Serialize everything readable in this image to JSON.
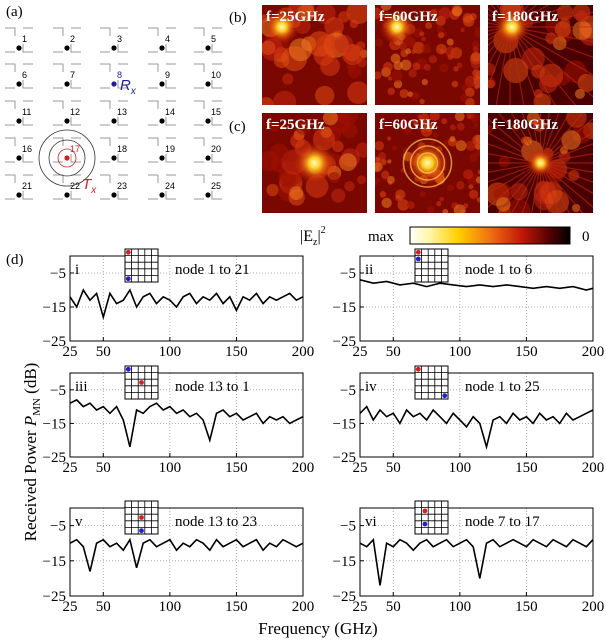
{
  "labels": {
    "a": "(a)",
    "b": "(b)",
    "c": "(c)",
    "d": "(d)"
  },
  "grid": {
    "nodes": [
      "1",
      "2",
      "3",
      "4",
      "5",
      "6",
      "7",
      "8",
      "9",
      "10",
      "11",
      "12",
      "13",
      "14",
      "15",
      "16",
      "17",
      "18",
      "19",
      "20",
      "21",
      "22",
      "23",
      "24",
      "25"
    ],
    "rx_label": "R",
    "rx_sub": "x",
    "tx_label": "T",
    "tx_sub": "x",
    "rx_color": "#1f1f9a",
    "tx_color": "#d42020"
  },
  "heatmap_titles": {
    "b": [
      "f=25GHz",
      "f=60GHz",
      "f=180GHz"
    ],
    "c": [
      "f=25GHz",
      "f=60GHz",
      "f=180GHz"
    ]
  },
  "colorbar": {
    "quantity": "|E",
    "sub": "z",
    "sup": "2",
    "max_label": "max",
    "min_label": "0"
  },
  "axes": {
    "ylabel": "Received Power",
    "ylabel_sym": "P",
    "ylabel_sub": "MN",
    "ylabel_unit": "(dB)",
    "xlabel": "Frequency (GHz)"
  },
  "chart_data": [
    {
      "type": "line",
      "panel": "i",
      "title": "node 1 to 21",
      "xlim": [
        25,
        200
      ],
      "ylim": [
        -25,
        0
      ],
      "xticks": [
        "25",
        "50",
        "100",
        "150",
        "200"
      ],
      "yticks": [
        "-5",
        "-15",
        "-25"
      ],
      "x": [
        25,
        30,
        35,
        40,
        45,
        50,
        55,
        60,
        65,
        70,
        75,
        80,
        85,
        90,
        95,
        100,
        105,
        110,
        115,
        120,
        125,
        130,
        135,
        140,
        145,
        150,
        155,
        160,
        165,
        170,
        175,
        180,
        185,
        190,
        195,
        200
      ],
      "y": [
        -12,
        -15,
        -10,
        -13,
        -11,
        -18,
        -11,
        -14,
        -13,
        -10,
        -15,
        -12,
        -11,
        -14,
        -12,
        -13,
        -15,
        -12,
        -11,
        -14,
        -12,
        -13,
        -11,
        -14,
        -12,
        -16,
        -12,
        -13,
        -11,
        -14,
        -12,
        -13,
        -12,
        -11,
        -13,
        -12
      ]
    },
    {
      "type": "line",
      "panel": "ii",
      "title": "node 1 to 6",
      "xlim": [
        25,
        200
      ],
      "ylim": [
        -25,
        0
      ],
      "xticks": [
        "25",
        "50",
        "100",
        "150",
        "200"
      ],
      "yticks": [
        "-5",
        "-15",
        "-25"
      ],
      "x": [
        25,
        35,
        45,
        55,
        65,
        75,
        85,
        95,
        105,
        115,
        125,
        135,
        145,
        155,
        165,
        175,
        185,
        195,
        200
      ],
      "y": [
        -7,
        -8,
        -7.5,
        -8.5,
        -8,
        -9,
        -8,
        -8.5,
        -9,
        -8.5,
        -9,
        -8.5,
        -9,
        -9.5,
        -9,
        -9.5,
        -9,
        -10,
        -9.5
      ]
    },
    {
      "type": "line",
      "panel": "iii",
      "title": "node 13 to 1",
      "xlim": [
        25,
        200
      ],
      "ylim": [
        -25,
        0
      ],
      "xticks": [
        "25",
        "50",
        "100",
        "150",
        "200"
      ],
      "yticks": [
        "-5",
        "-15",
        "-25"
      ],
      "x": [
        25,
        30,
        35,
        40,
        45,
        50,
        55,
        60,
        65,
        70,
        75,
        80,
        85,
        90,
        95,
        100,
        105,
        110,
        115,
        120,
        125,
        130,
        135,
        140,
        145,
        150,
        155,
        160,
        165,
        170,
        175,
        180,
        185,
        190,
        195,
        200
      ],
      "y": [
        -9,
        -8,
        -10,
        -9,
        -11,
        -10,
        -12,
        -10,
        -14,
        -22,
        -11,
        -12,
        -10,
        -9,
        -11,
        -10,
        -12,
        -11,
        -13,
        -12,
        -14,
        -20,
        -12,
        -11,
        -13,
        -12,
        -14,
        -13,
        -12,
        -15,
        -13,
        -14,
        -13,
        -15,
        -14,
        -13
      ]
    },
    {
      "type": "line",
      "panel": "iv",
      "title": "node 1 to 25",
      "xlim": [
        25,
        200
      ],
      "ylim": [
        -25,
        0
      ],
      "xticks": [
        "25",
        "50",
        "100",
        "150",
        "200"
      ],
      "yticks": [
        "-5",
        "-15",
        "-25"
      ],
      "x": [
        25,
        30,
        35,
        40,
        45,
        50,
        55,
        60,
        65,
        70,
        75,
        80,
        85,
        90,
        95,
        100,
        105,
        110,
        115,
        120,
        125,
        130,
        135,
        140,
        145,
        150,
        155,
        160,
        165,
        170,
        175,
        180,
        185,
        190,
        195,
        200
      ],
      "y": [
        -12,
        -10,
        -14,
        -11,
        -13,
        -12,
        -15,
        -11,
        -13,
        -12,
        -14,
        -11,
        -13,
        -15,
        -12,
        -14,
        -16,
        -13,
        -15,
        -22,
        -14,
        -13,
        -15,
        -12,
        -14,
        -13,
        -15,
        -12,
        -14,
        -13,
        -15,
        -12,
        -14,
        -13,
        -12,
        -11
      ]
    },
    {
      "type": "line",
      "panel": "v",
      "title": "node 13 to 23",
      "xlim": [
        25,
        200
      ],
      "ylim": [
        -25,
        0
      ],
      "xticks": [
        "25",
        "50",
        "100",
        "150",
        "200"
      ],
      "yticks": [
        "-5",
        "-15",
        "-25"
      ],
      "x": [
        25,
        30,
        35,
        40,
        45,
        50,
        55,
        60,
        65,
        70,
        75,
        80,
        85,
        90,
        95,
        100,
        105,
        110,
        115,
        120,
        125,
        130,
        135,
        140,
        145,
        150,
        155,
        160,
        165,
        170,
        175,
        180,
        185,
        190,
        195,
        200
      ],
      "y": [
        -10,
        -9,
        -11,
        -18,
        -10,
        -9,
        -11,
        -10,
        -12,
        -9,
        -17,
        -10,
        -9,
        -11,
        -10,
        -9,
        -12,
        -10,
        -11,
        -9,
        -10,
        -12,
        -9,
        -11,
        -10,
        -9,
        -11,
        -10,
        -9,
        -12,
        -10,
        -11,
        -9,
        -10,
        -11,
        -10
      ]
    },
    {
      "type": "line",
      "panel": "vi",
      "title": "node 7 to 17",
      "xlim": [
        25,
        200
      ],
      "ylim": [
        -25,
        0
      ],
      "xticks": [
        "25",
        "50",
        "100",
        "150",
        "200"
      ],
      "yticks": [
        "-5",
        "-15",
        "-25"
      ],
      "x": [
        25,
        30,
        35,
        40,
        45,
        50,
        55,
        60,
        65,
        70,
        75,
        80,
        85,
        90,
        95,
        100,
        105,
        110,
        115,
        120,
        125,
        130,
        135,
        140,
        145,
        150,
        155,
        160,
        165,
        170,
        175,
        180,
        185,
        190,
        195,
        200
      ],
      "y": [
        -10,
        -11,
        -9,
        -22,
        -10,
        -11,
        -9,
        -10,
        -12,
        -10,
        -9,
        -11,
        -10,
        -9,
        -11,
        -10,
        -9,
        -11,
        -20,
        -10,
        -9,
        -11,
        -10,
        -9,
        -10,
        -11,
        -9,
        -10,
        -11,
        -9,
        -10,
        -11,
        -9,
        -10,
        -11,
        -9
      ]
    }
  ]
}
